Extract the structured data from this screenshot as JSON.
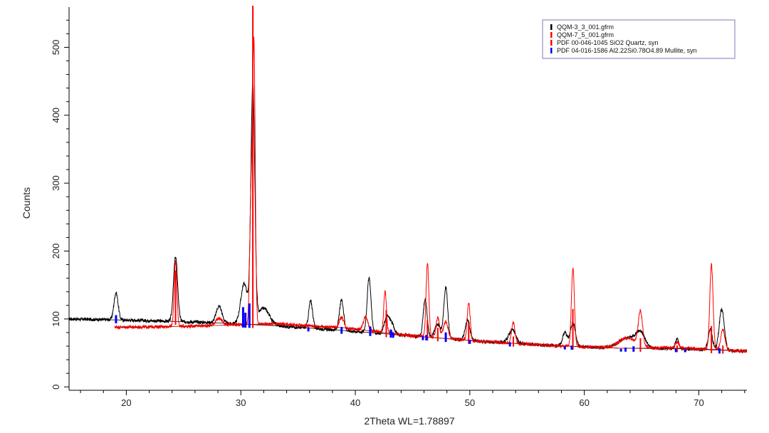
{
  "chart_data": {
    "type": "line",
    "xlabel": "2Theta WL=1.78897",
    "ylabel": "Counts",
    "xlim": [
      15,
      74.2
    ],
    "ylim": [
      -5,
      555
    ],
    "xticks": [
      20,
      30,
      40,
      50,
      60,
      70
    ],
    "yticks": [
      0,
      100,
      200,
      300,
      400,
      500
    ],
    "legend": {
      "placement": "top-right"
    },
    "colors": {
      "black": "#000000",
      "red": "#ff0000",
      "blue": "#0000ff"
    },
    "series": [
      {
        "name": "QQM-3_3_001.gfrm",
        "color": "#000000",
        "background": [
          100,
          98,
          95,
          90,
          83,
          75,
          67,
          61,
          57,
          56,
          52
        ],
        "peaks": [
          [
            19.1,
            40,
            0.18
          ],
          [
            24.3,
            95,
            0.18
          ],
          [
            28.1,
            25,
            0.25
          ],
          [
            30.3,
            60,
            0.3
          ],
          [
            31.05,
            350,
            0.17
          ],
          [
            32.0,
            25,
            0.5
          ],
          [
            36.1,
            40,
            0.17
          ],
          [
            38.8,
            45,
            0.18
          ],
          [
            41.2,
            80,
            0.17
          ],
          [
            42.7,
            20,
            0.2
          ],
          [
            43.1,
            18,
            0.25
          ],
          [
            46.1,
            55,
            0.17
          ],
          [
            47.2,
            20,
            0.25
          ],
          [
            47.9,
            75,
            0.17
          ],
          [
            49.8,
            30,
            0.2
          ],
          [
            53.7,
            20,
            0.3
          ],
          [
            58.3,
            20,
            0.2
          ],
          [
            59.0,
            35,
            0.22
          ],
          [
            63.8,
            15,
            0.8
          ],
          [
            64.9,
            20,
            0.4
          ],
          [
            68.1,
            15,
            0.15
          ],
          [
            71.0,
            30,
            0.18
          ],
          [
            72.0,
            60,
            0.22
          ]
        ]
      },
      {
        "name": "QQM-7_5_001.gfrm",
        "color": "#ff0000",
        "background": [
          88,
          88,
          90,
          93,
          87,
          75,
          67,
          61,
          57,
          57,
          52
        ],
        "peaks": [
          [
            24.3,
            95,
            0.12
          ],
          [
            28.1,
            10,
            0.3
          ],
          [
            30.9,
            190,
            0.12
          ],
          [
            31.15,
            400,
            0.11
          ],
          [
            38.8,
            15,
            0.2
          ],
          [
            40.9,
            20,
            0.2
          ],
          [
            42.6,
            60,
            0.12
          ],
          [
            46.3,
            110,
            0.12
          ],
          [
            47.2,
            30,
            0.15
          ],
          [
            47.9,
            25,
            0.2
          ],
          [
            49.9,
            55,
            0.13
          ],
          [
            53.8,
            30,
            0.15
          ],
          [
            59.0,
            115,
            0.13
          ],
          [
            63.8,
            15,
            0.8
          ],
          [
            64.9,
            50,
            0.18
          ],
          [
            68.1,
            10,
            0.15
          ],
          [
            71.1,
            125,
            0.14
          ],
          [
            72.1,
            30,
            0.18
          ]
        ]
      },
      {
        "name": "PDF 00-046-1045 SiO2 Quartz, syn",
        "color": "#ff0000",
        "type": "stick",
        "sticks": [
          [
            24.3,
            80
          ],
          [
            31.05,
            500
          ],
          [
            42.7,
            40
          ],
          [
            46.3,
            30
          ],
          [
            47.2,
            20
          ],
          [
            49.9,
            30
          ],
          [
            53.8,
            15
          ],
          [
            59.0,
            60
          ],
          [
            64.9,
            20
          ],
          [
            68.1,
            10
          ],
          [
            71.1,
            40
          ],
          [
            72.1,
            12
          ]
        ]
      },
      {
        "name": "PDF 04-016-1586 Al2.22Si0.78O4.89 Mullite, syn",
        "color": "#0000ff",
        "type": "stick",
        "sticks": [
          [
            19.1,
            12
          ],
          [
            30.2,
            30
          ],
          [
            30.4,
            22
          ],
          [
            30.75,
            36
          ],
          [
            35.9,
            6
          ],
          [
            38.8,
            10
          ],
          [
            41.3,
            14
          ],
          [
            43.1,
            12
          ],
          [
            43.3,
            8
          ],
          [
            45.9,
            6
          ],
          [
            46.2,
            8
          ],
          [
            47.9,
            14
          ],
          [
            50.0,
            6
          ],
          [
            53.5,
            6
          ],
          [
            58.3,
            4
          ],
          [
            58.9,
            6
          ],
          [
            63.2,
            4
          ],
          [
            63.6,
            6
          ],
          [
            64.3,
            8
          ],
          [
            68.0,
            5
          ],
          [
            68.8,
            4
          ],
          [
            71.8,
            8
          ]
        ]
      }
    ]
  }
}
